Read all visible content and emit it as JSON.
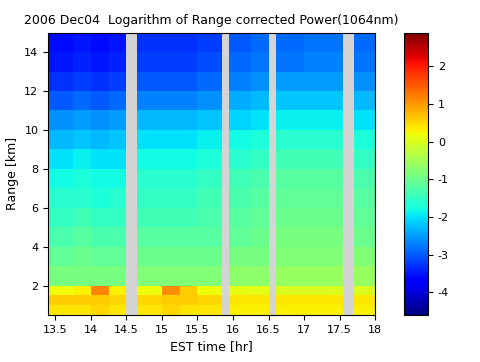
{
  "chart_data": {
    "type": "heatmap",
    "title": "2006 Dec04  Logarithm of Range corrected Power(1064nm)",
    "x_label": "EST time [hr]",
    "y_label": "Range [km]",
    "color": "jet",
    "xlim": [
      13.4,
      18.0
    ],
    "ylim": [
      0.5,
      15
    ],
    "xticks": [
      13.5,
      14,
      14.5,
      15,
      15.5,
      16,
      16.5,
      17,
      17.5,
      18
    ],
    "yticks": [
      2,
      4,
      6,
      8,
      10,
      12,
      14
    ],
    "x_edges": [
      13.4,
      13.75,
      14.0,
      14.25,
      14.5,
      14.65,
      15.0,
      15.25,
      15.5,
      15.85,
      15.95,
      16.25,
      16.5,
      16.6,
      17.0,
      17.25,
      17.55,
      17.7,
      18.0
    ],
    "y_edges": [
      0.5,
      1,
      1.5,
      2,
      3,
      4,
      5,
      6,
      7,
      8,
      9,
      10,
      11,
      12,
      13,
      14,
      15
    ],
    "cells": [
      [
        0.4,
        0.4,
        0.5,
        0.4,
        null,
        0.4,
        0.5,
        0.4,
        0.4,
        null,
        0.3,
        0.3,
        null,
        0.3,
        0.3,
        0.3,
        null,
        0.3
      ],
      [
        0.6,
        0.6,
        0.6,
        0.5,
        null,
        0.5,
        0.6,
        0.6,
        0.5,
        null,
        0.4,
        0.4,
        null,
        0.4,
        0.4,
        0.4,
        null,
        0.4
      ],
      [
        0.2,
        0.3,
        1.2,
        0.3,
        null,
        0.2,
        1.1,
        0.6,
        0.2,
        null,
        0.1,
        0.1,
        null,
        0.0,
        0.0,
        0.0,
        null,
        0.0
      ],
      [
        -0.9,
        -0.9,
        -0.9,
        -0.9,
        null,
        -0.8,
        -0.8,
        -0.8,
        -0.8,
        null,
        -0.7,
        -0.7,
        null,
        -0.6,
        -0.6,
        -0.6,
        null,
        -0.6
      ],
      [
        -1.1,
        -1.0,
        -1.1,
        -1.1,
        null,
        -1.0,
        -1.0,
        -1.0,
        -1.0,
        null,
        -0.9,
        -0.9,
        null,
        -0.8,
        -0.8,
        -0.8,
        null,
        -0.8
      ],
      [
        -1.3,
        -1.2,
        -1.3,
        -1.3,
        null,
        -1.2,
        -1.2,
        -1.2,
        -1.2,
        null,
        -1.1,
        -1.0,
        null,
        -0.9,
        -0.9,
        -0.9,
        null,
        -1.0
      ],
      [
        -1.5,
        -1.4,
        -1.5,
        -1.5,
        null,
        -1.4,
        -1.4,
        -1.4,
        -1.3,
        null,
        -1.2,
        -1.1,
        null,
        -1.0,
        -1.0,
        -1.0,
        null,
        -1.1
      ],
      [
        -1.6,
        -1.6,
        -1.7,
        -1.6,
        null,
        -1.5,
        -1.5,
        -1.5,
        -1.4,
        null,
        -1.3,
        -1.2,
        null,
        -1.1,
        -1.1,
        -1.1,
        null,
        -1.2
      ],
      [
        -1.8,
        -1.7,
        -1.8,
        -1.8,
        null,
        -1.6,
        -1.6,
        -1.6,
        -1.5,
        null,
        -1.4,
        -1.3,
        null,
        -1.2,
        -1.2,
        -1.2,
        null,
        -1.3
      ],
      [
        -2.0,
        -1.9,
        -2.0,
        -2.0,
        null,
        -1.8,
        -1.8,
        -1.8,
        -1.7,
        null,
        -1.6,
        -1.5,
        null,
        -1.4,
        -1.4,
        -1.4,
        null,
        -1.5
      ],
      [
        -2.3,
        -2.2,
        -2.3,
        -2.2,
        null,
        -2.0,
        -2.0,
        -2.0,
        -1.9,
        null,
        -1.8,
        -1.7,
        null,
        -1.6,
        -1.6,
        -1.6,
        null,
        -1.7
      ],
      [
        -2.6,
        -2.5,
        -2.6,
        -2.5,
        null,
        -2.3,
        -2.3,
        -2.3,
        -2.2,
        null,
        -2.1,
        -2.0,
        null,
        -1.9,
        -1.9,
        -1.9,
        null,
        -2.0
      ],
      [
        -3.0,
        -2.9,
        -3.0,
        -2.9,
        null,
        -2.7,
        -2.7,
        -2.7,
        -2.6,
        null,
        -2.4,
        -2.3,
        null,
        -2.2,
        -2.2,
        -2.2,
        null,
        -2.3
      ],
      [
        -3.3,
        -3.2,
        -3.3,
        -3.2,
        null,
        -3.0,
        -3.0,
        -3.0,
        -2.9,
        null,
        -2.7,
        -2.6,
        null,
        -2.5,
        -2.5,
        -2.5,
        null,
        -2.6
      ],
      [
        -3.5,
        -3.4,
        -3.5,
        -3.4,
        null,
        -3.2,
        -3.2,
        -3.2,
        -3.1,
        null,
        -2.9,
        -2.8,
        null,
        -2.8,
        -2.7,
        -2.7,
        null,
        -2.8
      ],
      [
        -3.6,
        -3.5,
        -3.6,
        -3.5,
        null,
        -3.3,
        -3.3,
        -3.3,
        -3.2,
        null,
        -3.0,
        -2.9,
        null,
        -2.9,
        -2.8,
        -2.8,
        null,
        -2.9
      ]
    ],
    "colorbar": {
      "range": [
        -4.6,
        2.9
      ],
      "ticks": [
        -4,
        -3,
        -2,
        -1,
        0,
        1,
        2
      ]
    }
  }
}
